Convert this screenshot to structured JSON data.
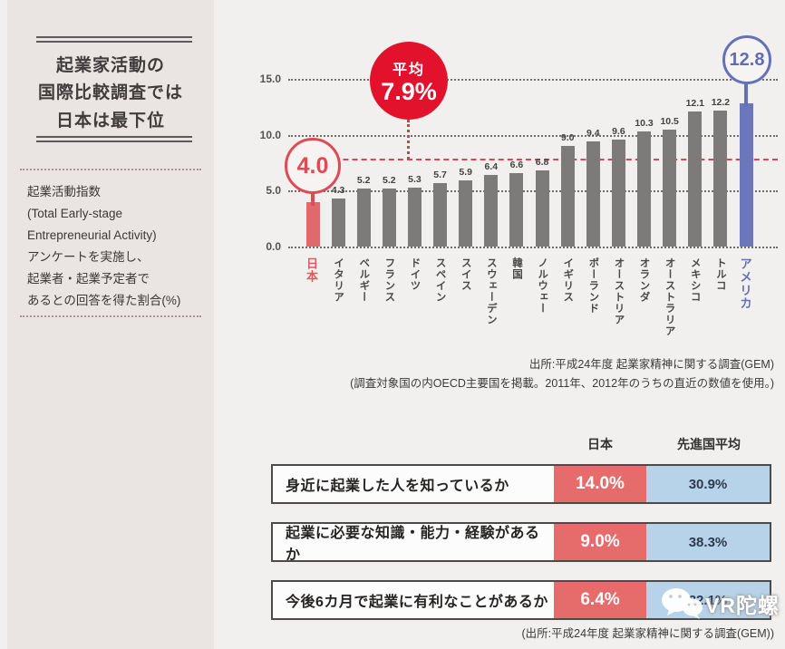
{
  "sidebar": {
    "title_lines": [
      "起業家活動の",
      "国際比較調査では",
      "日本は最下位"
    ],
    "description_lines": [
      "起業活動指数",
      "(Total Early-stage",
      "Entrepreneurial Activity)",
      "アンケートを実施し、",
      "起業者・起業予定者で",
      "あるとの回答を得た割合(%)"
    ]
  },
  "chart_data": {
    "type": "bar",
    "title": "",
    "categories": [
      "日本",
      "イタリア",
      "ベルギー",
      "フランス",
      "ドイツ",
      "スペイン",
      "スイス",
      "スウェーデン",
      "韓国",
      "ノルウェー",
      "イギリス",
      "ポーランド",
      "オーストリア",
      "オランダ",
      "オーストラリア",
      "メキシコ",
      "トルコ",
      "アメリカ"
    ],
    "values": [
      4.0,
      4.3,
      5.2,
      5.2,
      5.3,
      5.7,
      5.9,
      6.4,
      6.6,
      6.8,
      9.0,
      9.4,
      9.6,
      10.3,
      10.5,
      12.1,
      12.2,
      12.8
    ],
    "yticks": [
      0.0,
      5.0,
      10.0,
      15.0
    ],
    "ylim": [
      0,
      15
    ],
    "grid": "dotted horizontal",
    "average": 7.9,
    "average_label": "平均",
    "average_text": "7.9%",
    "japan_callout": "4.0",
    "usa_callout": "12.8"
  },
  "chart_source_lines": [
    "出所:平成24年度 起業家精神に関する調査(GEM)",
    "(調査対象国の内OECD主要国を掲載。2011年、2012年のうちの直近の数値を使用。)"
  ],
  "table": {
    "headers": {
      "japan": "日本",
      "average": "先進国平均"
    },
    "rows": [
      {
        "question": "身近に起業した人を知っているか",
        "japan": "14.0%",
        "average": "30.9%"
      },
      {
        "question": "起業に必要な知識・能力・経験があるか",
        "japan": "9.0%",
        "average": "38.3%"
      },
      {
        "question": "今後6カ月で起業に有利なことがあるか",
        "japan": "6.4%",
        "average": "32.1%"
      }
    ],
    "source": "(出所:平成24年度 起業家精神に関する調査(GEM))"
  },
  "watermark": "VR陀螺",
  "colors": {
    "bar_gray": "#7d7b79",
    "japan_bar": "#e0696b",
    "usa_bar": "#6b77ba",
    "accent_red": "#e2122d",
    "table_japan_bg": "#e66c6c",
    "table_avg_bg": "#b7d3e9",
    "sidebar_bg": "#eae4e2",
    "background": "#f2f0ee"
  }
}
